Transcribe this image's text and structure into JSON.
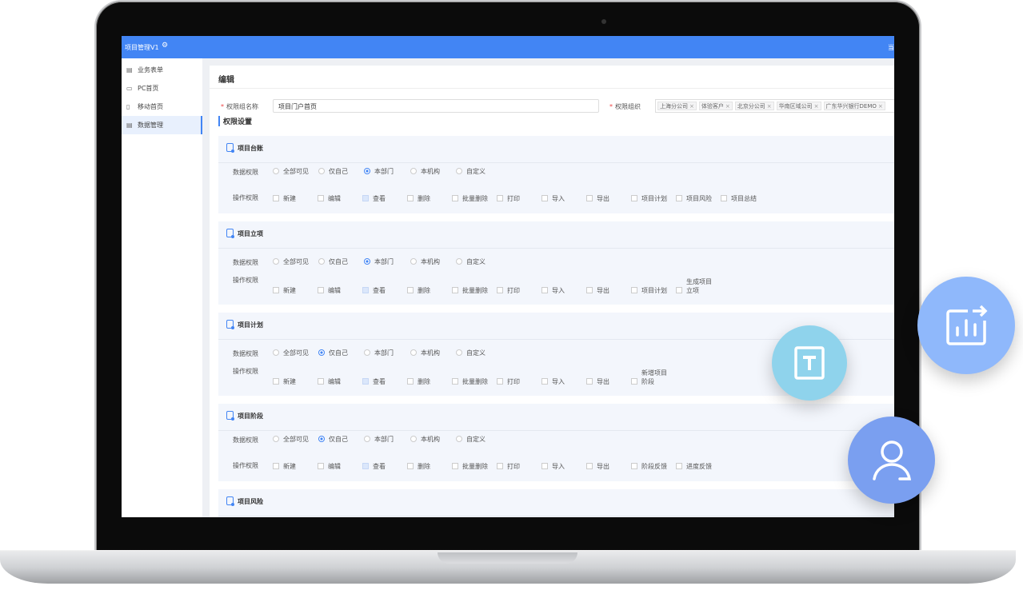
{
  "app": {
    "title": "项目管理V1",
    "gear_icon": "gear-icon",
    "header_right": "当"
  },
  "sidebar": {
    "items": [
      {
        "label": "业务表单",
        "icon": "form-icon",
        "active": false
      },
      {
        "label": "PC首页",
        "icon": "monitor-icon",
        "active": false
      },
      {
        "label": "移动首页",
        "icon": "mobile-icon",
        "active": false
      },
      {
        "label": "数据管理",
        "icon": "form-icon",
        "active": true
      }
    ]
  },
  "panel": {
    "title": "编辑",
    "name_label": "权限组名称",
    "name_value": "项目门户首页",
    "org_label": "权限组织",
    "org_tags": [
      "上海分公司",
      "体验客户",
      "北京分公司",
      "华南区域公司",
      "广东华兴银行DEMO"
    ],
    "section_title": "权限设置",
    "data_label": "数据权限",
    "ops_label": "操作权限",
    "data_options": [
      "全部可见",
      "仅自己",
      "本部门",
      "本机构",
      "自定义"
    ]
  },
  "cards": [
    {
      "title": "项目台账",
      "data_selected": 2,
      "ops": [
        [
          "新建",
          false
        ],
        [
          "编辑",
          false
        ],
        [
          "查看",
          true
        ],
        [
          "删除",
          false
        ],
        [
          "批量删除",
          false
        ],
        [
          "打印",
          false
        ],
        [
          "导入",
          false
        ],
        [
          "导出",
          false
        ],
        [
          "项目计划",
          false
        ],
        [
          "项目风险",
          false
        ],
        [
          "项目总结",
          false
        ]
      ]
    },
    {
      "title": "项目立项",
      "data_selected": 2,
      "ops": [
        [
          "新建",
          false
        ],
        [
          "编辑",
          false
        ],
        [
          "查看",
          true
        ],
        [
          "删除",
          false
        ],
        [
          "批量删除",
          false
        ],
        [
          "打印",
          false
        ],
        [
          "导入",
          false
        ],
        [
          "导出",
          false
        ],
        [
          "项目计划",
          false
        ],
        [
          "生成项目立项",
          false
        ]
      ]
    },
    {
      "title": "项目计划",
      "data_selected": 1,
      "ops": [
        [
          "新建",
          false
        ],
        [
          "编辑",
          false
        ],
        [
          "查看",
          true
        ],
        [
          "删除",
          false
        ],
        [
          "批量删除",
          false
        ],
        [
          "打印",
          false
        ],
        [
          "导入",
          false
        ],
        [
          "导出",
          false
        ],
        [
          "新增项目阶段",
          false
        ]
      ]
    },
    {
      "title": "项目阶段",
      "data_selected": 1,
      "ops": [
        [
          "新建",
          false
        ],
        [
          "编辑",
          false
        ],
        [
          "查看",
          true
        ],
        [
          "删除",
          false
        ],
        [
          "批量删除",
          false
        ],
        [
          "打印",
          false
        ],
        [
          "导入",
          false
        ],
        [
          "导出",
          false
        ],
        [
          "阶段反馈",
          false
        ],
        [
          "进度反馈",
          false
        ]
      ]
    },
    {
      "title": "项目风险"
    }
  ],
  "floating_icons": [
    {
      "icon": "text-box-icon",
      "color": "#8fd3ec"
    },
    {
      "icon": "chart-share-icon",
      "color": "#8fb8fb"
    },
    {
      "icon": "user-icon",
      "color": "#7a9ff0"
    }
  ]
}
